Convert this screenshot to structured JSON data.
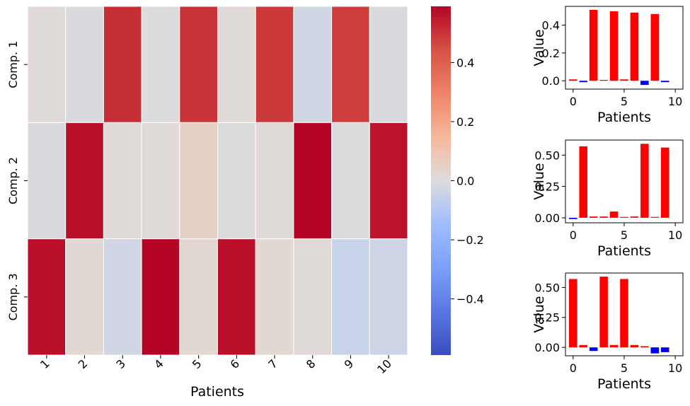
{
  "chart_data": [
    {
      "type": "heatmap",
      "x_categories": [
        "1",
        "2",
        "3",
        "4",
        "5",
        "6",
        "7",
        "8",
        "9",
        "10"
      ],
      "y_categories": [
        "Comp. 1",
        "Comp. 2",
        "Comp. 3"
      ],
      "values": [
        [
          0.01,
          -0.01,
          0.51,
          0.0,
          0.5,
          0.01,
          0.49,
          -0.03,
          0.48,
          -0.01
        ],
        [
          -0.01,
          0.57,
          0.01,
          0.01,
          0.05,
          0.0,
          0.01,
          0.59,
          0.0,
          0.56
        ],
        [
          0.57,
          0.02,
          -0.03,
          0.59,
          0.02,
          0.57,
          0.02,
          0.01,
          -0.05,
          -0.04
        ]
      ],
      "xlabel": "Patients",
      "ylabel": "",
      "colormap": "coolwarm",
      "vmin": -0.59,
      "vmax": 0.59,
      "colorbar_ticks": [
        0.4,
        0.2,
        0.0,
        -0.2,
        -0.4
      ],
      "colorbar_tick_labels": [
        "0.4",
        "0.2",
        "0.0",
        "−0.2",
        "−0.4"
      ]
    },
    {
      "type": "bar",
      "x": [
        0,
        1,
        2,
        3,
        4,
        5,
        6,
        7,
        8,
        9
      ],
      "values": [
        0.01,
        -0.01,
        0.51,
        0.0,
        0.5,
        0.01,
        0.49,
        -0.03,
        0.48,
        -0.01
      ],
      "xlabel": "Patients",
      "ylabel": "Value",
      "xlim": [
        -0.75,
        10.75
      ],
      "ylim": [
        -0.06,
        0.535
      ],
      "xticks": [
        0,
        5,
        10
      ],
      "yticks": [
        0.0,
        0.2,
        0.4
      ],
      "ytick_labels": [
        "0.0",
        "0.2",
        "0.4"
      ],
      "positive_color": "#ff0000",
      "negative_color": "#0000ff"
    },
    {
      "type": "bar",
      "x": [
        0,
        1,
        2,
        3,
        4,
        5,
        6,
        7,
        8,
        9
      ],
      "values": [
        -0.01,
        0.57,
        0.01,
        0.01,
        0.05,
        0.0,
        0.01,
        0.59,
        0.0,
        0.56
      ],
      "xlabel": "Patients",
      "ylabel": "Value",
      "xlim": [
        -0.75,
        10.75
      ],
      "ylim": [
        -0.04,
        0.62
      ],
      "xticks": [
        0,
        5,
        10
      ],
      "yticks": [
        0.0,
        0.25,
        0.5
      ],
      "ytick_labels": [
        "0.00",
        "0.25",
        "0.50"
      ],
      "positive_color": "#ff0000",
      "negative_color": "#0000ff"
    },
    {
      "type": "bar",
      "x": [
        0,
        1,
        2,
        3,
        4,
        5,
        6,
        7,
        8,
        9
      ],
      "values": [
        0.57,
        0.02,
        -0.03,
        0.59,
        0.02,
        0.57,
        0.02,
        0.01,
        -0.05,
        -0.04
      ],
      "xlabel": "Patients",
      "ylabel": "Value",
      "xlim": [
        -0.75,
        10.75
      ],
      "ylim": [
        -0.07,
        0.62
      ],
      "xticks": [
        0,
        5,
        10
      ],
      "yticks": [
        0.0,
        0.25,
        0.5
      ],
      "ytick_labels": [
        "0.00",
        "0.25",
        "0.50"
      ],
      "positive_color": "#ff0000",
      "negative_color": "#0000ff"
    }
  ]
}
